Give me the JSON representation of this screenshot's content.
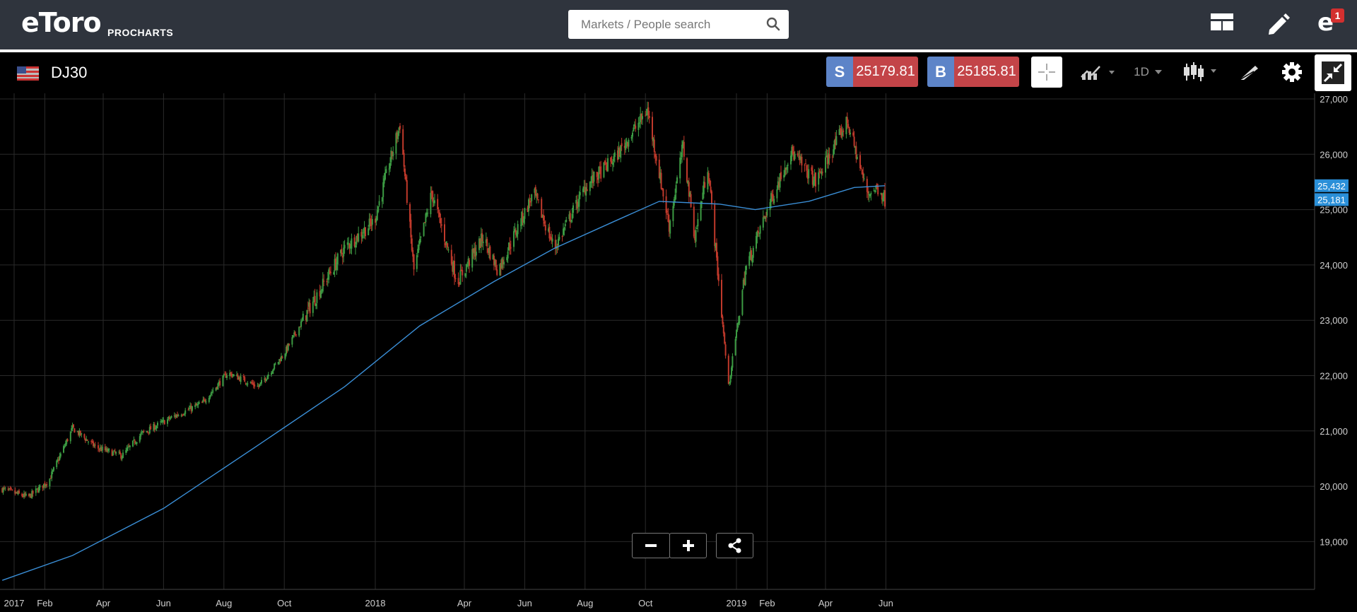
{
  "header": {
    "logo": "eToro",
    "logo_sub": "PROCHARTS",
    "search_placeholder": "Markets / People search",
    "notification_count": "1",
    "icons": [
      "layout-icon",
      "pencil-icon",
      "etoro-profile-icon"
    ]
  },
  "toolbar": {
    "instrument": "DJ30",
    "flag": "us-flag-icon",
    "sell_label": "S",
    "sell_price": "25179.81",
    "buy_label": "B",
    "buy_price": "25185.81",
    "timeframe": "1D",
    "icons": [
      "crosshair-icon",
      "compare-icon",
      "candles-icon",
      "draw-icon",
      "gear-icon",
      "collapse-icon"
    ]
  },
  "zoom": {
    "icons": [
      "minus-icon",
      "plus-icon",
      "share-icon"
    ]
  },
  "colors": {
    "up": "#3c9b43",
    "down": "#c0392b",
    "ma": "#3a8ed6",
    "sell": "#c34448",
    "sell_tag": "#5d84c8",
    "bg": "#000000",
    "topbar": "#2f343d"
  },
  "chart_data": {
    "type": "candlestick",
    "ylim": [
      18100,
      27100
    ],
    "yticks": [
      27000,
      26000,
      25000,
      24000,
      23000,
      22000,
      21000,
      20000,
      19000
    ],
    "ytick_labels": [
      "27,000",
      "26,000",
      "25,000",
      "24,000",
      "23,000",
      "22,000",
      "21,000",
      "20,000",
      "19,000"
    ],
    "xticks": [
      {
        "label": "2017",
        "date": "2017-01-01"
      },
      {
        "label": "Feb",
        "date": "2017-02-01"
      },
      {
        "label": "Apr",
        "date": "2017-04-01"
      },
      {
        "label": "Jun",
        "date": "2017-06-01"
      },
      {
        "label": "Aug",
        "date": "2017-08-01"
      },
      {
        "label": "Oct",
        "date": "2017-10-01"
      },
      {
        "label": "2018",
        "date": "2018-01-01"
      },
      {
        "label": "Apr",
        "date": "2018-04-01"
      },
      {
        "label": "Jun",
        "date": "2018-06-01"
      },
      {
        "label": "Aug",
        "date": "2018-08-01"
      },
      {
        "label": "Oct",
        "date": "2018-10-01"
      },
      {
        "label": "2019",
        "date": "2019-01-01"
      },
      {
        "label": "Feb",
        "date": "2019-02-01"
      },
      {
        "label": "Apr",
        "date": "2019-04-01"
      },
      {
        "label": "Jun",
        "date": "2019-06-01"
      }
    ],
    "close_path": [
      {
        "date": "2016-12-20",
        "value": 19950
      },
      {
        "date": "2017-01-15",
        "value": 19800
      },
      {
        "date": "2017-02-05",
        "value": 20100
      },
      {
        "date": "2017-03-01",
        "value": 21050
      },
      {
        "date": "2017-03-25",
        "value": 20700
      },
      {
        "date": "2017-04-20",
        "value": 20550
      },
      {
        "date": "2017-05-10",
        "value": 20950
      },
      {
        "date": "2017-06-10",
        "value": 21250
      },
      {
        "date": "2017-07-10",
        "value": 21500
      },
      {
        "date": "2017-08-05",
        "value": 22050
      },
      {
        "date": "2017-09-05",
        "value": 21800
      },
      {
        "date": "2017-10-01",
        "value": 22400
      },
      {
        "date": "2017-11-01",
        "value": 23400
      },
      {
        "date": "2017-12-01",
        "value": 24300
      },
      {
        "date": "2017-12-31",
        "value": 24800
      },
      {
        "date": "2018-01-26",
        "value": 26550
      },
      {
        "date": "2018-02-09",
        "value": 23900
      },
      {
        "date": "2018-02-27",
        "value": 25300
      },
      {
        "date": "2018-03-25",
        "value": 23700
      },
      {
        "date": "2018-04-20",
        "value": 24500
      },
      {
        "date": "2018-05-05",
        "value": 23900
      },
      {
        "date": "2018-06-10",
        "value": 25300
      },
      {
        "date": "2018-07-01",
        "value": 24300
      },
      {
        "date": "2018-08-01",
        "value": 25400
      },
      {
        "date": "2018-09-01",
        "value": 25950
      },
      {
        "date": "2018-10-03",
        "value": 26800
      },
      {
        "date": "2018-10-25",
        "value": 24700
      },
      {
        "date": "2018-11-08",
        "value": 26150
      },
      {
        "date": "2018-11-20",
        "value": 24500
      },
      {
        "date": "2018-12-03",
        "value": 25800
      },
      {
        "date": "2018-12-24",
        "value": 21800
      },
      {
        "date": "2019-01-10",
        "value": 23900
      },
      {
        "date": "2019-02-01",
        "value": 25000
      },
      {
        "date": "2019-02-25",
        "value": 26050
      },
      {
        "date": "2019-03-22",
        "value": 25500
      },
      {
        "date": "2019-04-23",
        "value": 26600
      },
      {
        "date": "2019-05-13",
        "value": 25300
      },
      {
        "date": "2019-05-25",
        "value": 25400
      },
      {
        "date": "2019-05-31",
        "value": 25181
      }
    ],
    "ma_path": [
      {
        "date": "2016-12-20",
        "value": 18300
      },
      {
        "date": "2017-03-01",
        "value": 18750
      },
      {
        "date": "2017-06-01",
        "value": 19600
      },
      {
        "date": "2017-09-01",
        "value": 20700
      },
      {
        "date": "2017-12-01",
        "value": 21800
      },
      {
        "date": "2018-02-15",
        "value": 22900
      },
      {
        "date": "2018-05-01",
        "value": 23700
      },
      {
        "date": "2018-07-01",
        "value": 24300
      },
      {
        "date": "2018-09-01",
        "value": 24800
      },
      {
        "date": "2018-10-15",
        "value": 25150
      },
      {
        "date": "2018-12-15",
        "value": 25100
      },
      {
        "date": "2019-01-20",
        "value": 25000
      },
      {
        "date": "2019-03-15",
        "value": 25150
      },
      {
        "date": "2019-04-30",
        "value": 25400
      },
      {
        "date": "2019-05-31",
        "value": 25432
      }
    ],
    "last_values": [
      {
        "label": "25,432",
        "value": 25432,
        "series": "ma"
      },
      {
        "label": "25,181",
        "value": 25181,
        "series": "price"
      }
    ]
  }
}
